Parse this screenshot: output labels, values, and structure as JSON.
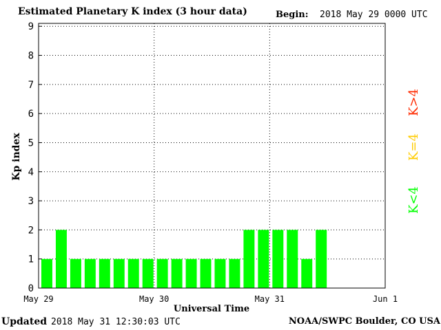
{
  "header": {
    "title": "Estimated Planetary K index (3 hour data)",
    "begin_label": "Begin:",
    "begin_value": "2018 May 29 0000 UTC"
  },
  "footer": {
    "updated_label": "Updated",
    "updated_value": "2018 May 31 12:30:03 UTC",
    "source": "NOAA/SWPC Boulder, CO USA"
  },
  "legend": {
    "high": {
      "label": "K>4",
      "color": "#ff2a00"
    },
    "mid": {
      "label": "K=4",
      "color": "#ffcc00"
    },
    "low": {
      "label": "K<4",
      "color": "#00ff00"
    }
  },
  "chart_data": {
    "type": "bar",
    "title": "Estimated Planetary K index (3 hour data)",
    "xlabel": "Universal Time",
    "ylabel": "Kp index",
    "ylim": [
      0,
      9
    ],
    "yticks": [
      "0",
      "1",
      "2",
      "3",
      "4",
      "5",
      "6",
      "7",
      "8",
      "9"
    ],
    "xticks": [
      "May 29",
      "May 30",
      "May 31",
      "Jun 1"
    ],
    "bar_color": "#00ff00",
    "grid": true,
    "x": [
      "2018-05-29 00:00",
      "2018-05-29 03:00",
      "2018-05-29 06:00",
      "2018-05-29 09:00",
      "2018-05-29 12:00",
      "2018-05-29 15:00",
      "2018-05-29 18:00",
      "2018-05-29 21:00",
      "2018-05-30 00:00",
      "2018-05-30 03:00",
      "2018-05-30 06:00",
      "2018-05-30 09:00",
      "2018-05-30 12:00",
      "2018-05-30 15:00",
      "2018-05-30 18:00",
      "2018-05-30 21:00",
      "2018-05-31 00:00",
      "2018-05-31 03:00",
      "2018-05-31 06:00",
      "2018-05-31 09:00"
    ],
    "values": [
      1,
      2,
      1,
      1,
      1,
      1,
      1,
      1,
      1,
      1,
      1,
      1,
      1,
      1,
      2,
      2,
      2,
      2,
      1,
      2
    ]
  }
}
